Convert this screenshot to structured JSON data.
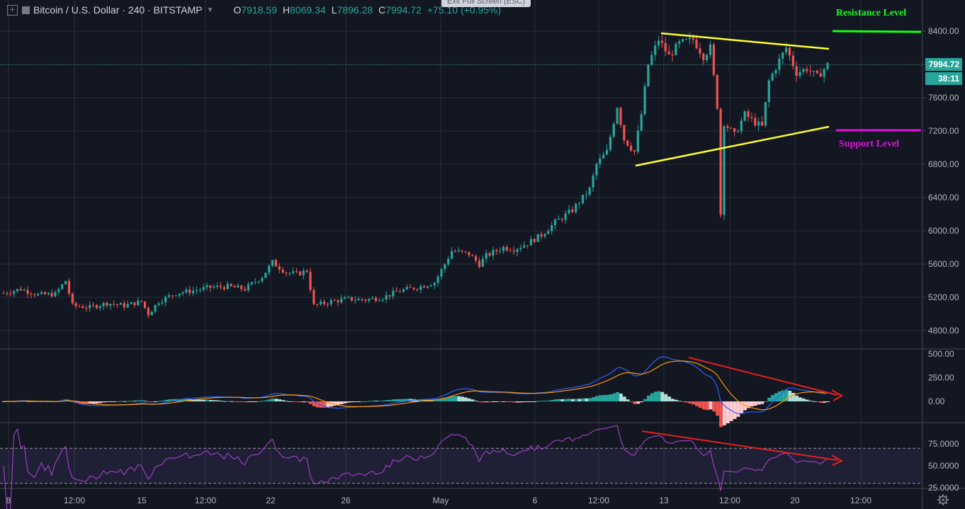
{
  "header": {
    "symbol": "Bitcoin / U.S. Dollar · 240 · BITSTAMP",
    "open_label": "O",
    "open": "7918.59",
    "high_label": "H",
    "high": "8069.34",
    "low_label": "L",
    "low": "7896.28",
    "close_label": "C",
    "close": "7994.72",
    "change": "+75.10 (+0.95%)"
  },
  "exit_fullscreen": "Exit Full Screen (ESC)",
  "annotations": {
    "resistance": "Resistance Level",
    "support": "Support Level"
  },
  "price_label": {
    "price": "7994.72",
    "countdown": "38:11"
  },
  "colors": {
    "background": "#131722",
    "up": "#26a69a",
    "down": "#ef5350",
    "trendline": "#ffff2e",
    "resistance": "#17ff17",
    "support": "#e010e0",
    "divergence": "#e62020",
    "rsi": "#9b3fc0",
    "macd": "#2962ff",
    "signal": "#ff9800"
  },
  "chart_data": {
    "type": "candlestick",
    "price_axis": {
      "ticks": [
        "8400.00",
        "8000.00",
        "7600.00",
        "7200.00",
        "6800.00",
        "6400.00",
        "6000.00",
        "5600.00",
        "5200.00",
        "4800.00"
      ]
    },
    "macd_axis": {
      "ticks": [
        "500.00",
        "250.00",
        "0.00"
      ]
    },
    "rsi_axis": {
      "ticks": [
        "75.0000",
        "50.0000",
        "25.0000"
      ],
      "upper_band": 70,
      "lower_band": 30
    },
    "time_axis": {
      "ticks": [
        "8",
        "12:00",
        "15",
        "12:00",
        "22",
        "26",
        "May",
        "6",
        "12:00",
        "13",
        "12:00",
        "20",
        "12:00"
      ]
    },
    "price_path": [
      [
        0,
        5250
      ],
      [
        5,
        5300
      ],
      [
        10,
        5230
      ],
      [
        15,
        5240
      ],
      [
        18,
        5400
      ],
      [
        20,
        5100
      ],
      [
        25,
        5080
      ],
      [
        30,
        5130
      ],
      [
        35,
        5100
      ],
      [
        40,
        5150
      ],
      [
        42,
        5000
      ],
      [
        45,
        5150
      ],
      [
        50,
        5250
      ],
      [
        55,
        5280
      ],
      [
        60,
        5320
      ],
      [
        65,
        5330
      ],
      [
        70,
        5300
      ],
      [
        75,
        5450
      ],
      [
        78,
        5620
      ],
      [
        82,
        5500
      ],
      [
        85,
        5480
      ],
      [
        88,
        5520
      ],
      [
        90,
        5100
      ],
      [
        95,
        5150
      ],
      [
        100,
        5180
      ],
      [
        105,
        5170
      ],
      [
        110,
        5200
      ],
      [
        115,
        5280
      ],
      [
        120,
        5320
      ],
      [
        125,
        5380
      ],
      [
        128,
        5600
      ],
      [
        130,
        5760
      ],
      [
        135,
        5720
      ],
      [
        138,
        5600
      ],
      [
        140,
        5700
      ],
      [
        145,
        5800
      ],
      [
        148,
        5780
      ],
      [
        152,
        5850
      ],
      [
        156,
        5950
      ],
      [
        160,
        6100
      ],
      [
        165,
        6250
      ],
      [
        170,
        6500
      ],
      [
        172,
        6800
      ],
      [
        175,
        6950
      ],
      [
        178,
        7500
      ],
      [
        180,
        7100
      ],
      [
        183,
        6950
      ],
      [
        185,
        7400
      ],
      [
        187,
        8000
      ],
      [
        190,
        8300
      ],
      [
        193,
        8100
      ],
      [
        196,
        8250
      ],
      [
        200,
        8300
      ],
      [
        203,
        8100
      ],
      [
        205,
        8200
      ],
      [
        207,
        7500
      ],
      [
        208,
        6200
      ],
      [
        209,
        7300
      ],
      [
        212,
        7150
      ],
      [
        215,
        7400
      ],
      [
        218,
        7300
      ],
      [
        220,
        7250
      ],
      [
        222,
        7800
      ],
      [
        225,
        8050
      ],
      [
        227,
        8200
      ],
      [
        230,
        7900
      ],
      [
        233,
        7950
      ],
      [
        236,
        7850
      ],
      [
        239,
        7994.72
      ]
    ],
    "resistance_level": 8400,
    "support_level": 7200,
    "candle_count": 240
  }
}
